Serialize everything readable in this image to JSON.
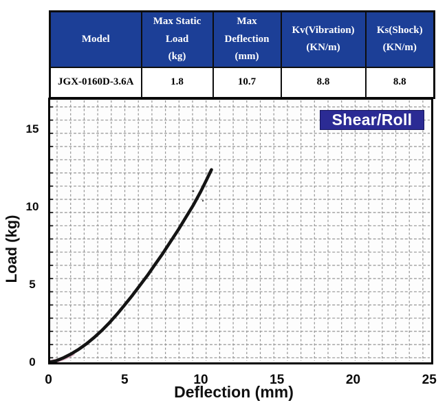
{
  "page": {
    "background": "#ffffff"
  },
  "colors": {
    "header_bg": "#1c3f97",
    "badge_bg": "#2b2b94",
    "badge_border": "#14145c",
    "curve": "#141414",
    "grid": "#949494",
    "axis": "#000000",
    "pink_artifact": "#c97f9e"
  },
  "table": {
    "headers": [
      "Model",
      "Max Static\nLoad\n(kg)",
      "Max\nDeflection\n(mm)",
      "Kv(Vibration)\n(KN/m)",
      "Ks(Shock)\n(KN/m)"
    ],
    "row": [
      "JGX-0160D-3.6A",
      "1.8",
      "10.7",
      "8.8",
      "8.8"
    ]
  },
  "chart": {
    "badge_label": "Shear/Roll",
    "xlabel": "Deflection (mm)",
    "ylabel": "Load (kg)",
    "x_ticks": [
      0,
      5,
      10,
      15,
      20,
      25
    ],
    "y_ticks": [
      0,
      5,
      10,
      15
    ]
  },
  "chart_data": {
    "type": "line",
    "title": "",
    "xlabel": "Deflection (mm)",
    "ylabel": "Load (kg)",
    "xlim": [
      0,
      25.2
    ],
    "ylim": [
      0,
      17
    ],
    "grid": true,
    "legend_position": "none",
    "annotations": [
      "Shear/Roll"
    ],
    "series": [
      {
        "name": "Shear/Roll",
        "color": "#141414",
        "x": [
          0,
          0.5,
          1,
          1.5,
          2,
          2.5,
          3,
          3.5,
          4,
          4.5,
          5,
          5.5,
          6,
          6.5,
          7,
          7.5,
          8,
          8.5,
          9,
          9.5,
          10,
          10.35,
          10.7
        ],
        "y": [
          0,
          0.1,
          0.3,
          0.55,
          0.85,
          1.2,
          1.6,
          2.05,
          2.55,
          3.1,
          3.7,
          4.3,
          4.95,
          5.6,
          6.3,
          7.0,
          7.75,
          8.5,
          9.3,
          10.1,
          11.0,
          11.7,
          12.4
        ]
      }
    ]
  }
}
